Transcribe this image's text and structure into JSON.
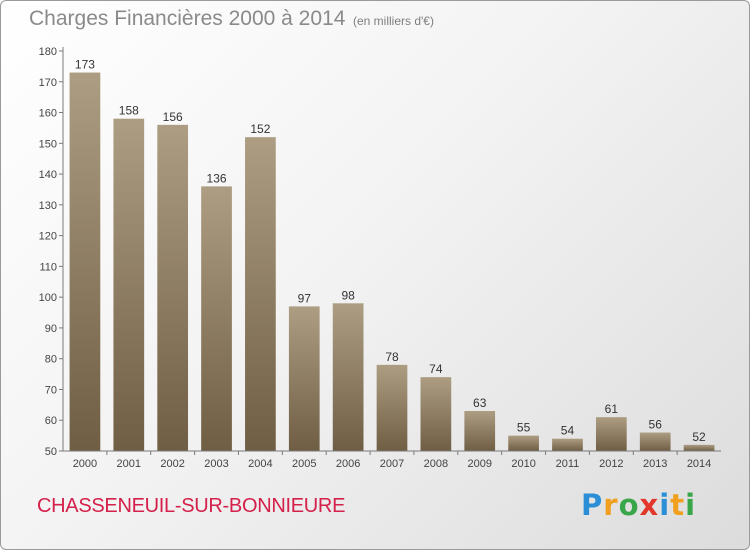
{
  "header": {
    "title": "Charges Financières 2000 à 2014",
    "subtitle": "(en milliers d'€)"
  },
  "footer": {
    "commune": "CHASSENEUIL-SUR-BONNIEURE",
    "logo_letters": [
      "P",
      "r",
      "o",
      "x",
      "i",
      "t",
      "i"
    ],
    "logo_colors": [
      "#2a8fd6",
      "#f0a01e",
      "#3aa64a",
      "#e2382b",
      "#2a8fd6",
      "#f0a01e",
      "#3aa64a"
    ]
  },
  "colors": {
    "bar_light": "#ad9d82",
    "bar_dark": "#6f5e44",
    "title": "#8a8a8a",
    "commune": "#d4204a"
  },
  "chart_data": {
    "type": "bar",
    "title": "Charges Financières 2000 à 2014",
    "subtitle": "(en milliers d'€)",
    "categories": [
      "2000",
      "2001",
      "2002",
      "2003",
      "2004",
      "2005",
      "2006",
      "2007",
      "2008",
      "2009",
      "2010",
      "2011",
      "2012",
      "2013",
      "2014"
    ],
    "values": [
      173,
      158,
      156,
      136,
      152,
      97,
      98,
      78,
      74,
      63,
      55,
      54,
      61,
      56,
      52
    ],
    "ylim": [
      50,
      180
    ],
    "yticks": [
      50,
      60,
      70,
      80,
      90,
      100,
      110,
      120,
      130,
      140,
      150,
      160,
      170,
      180
    ],
    "grid": false,
    "legend": "none",
    "data_labels": true
  }
}
